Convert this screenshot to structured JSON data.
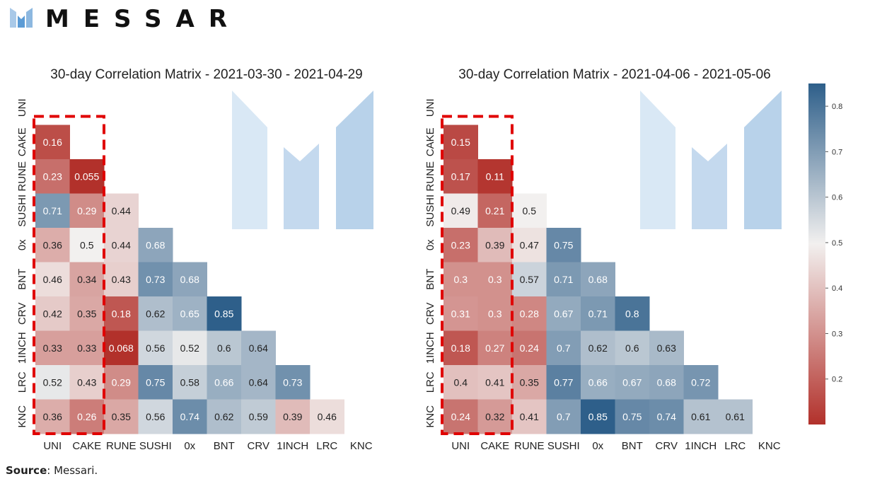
{
  "brand": {
    "name": "MESSARI",
    "logo_icon": "messari-m-logo-icon",
    "logo_color": "#5b9bd5",
    "text_color": "#111111"
  },
  "source": {
    "label": "Source",
    "text": ": Messari."
  },
  "colors": {
    "low": "#b2312b",
    "mid": "#f2f0ef",
    "high": "#2e5f8a",
    "highlight_box": "#e00000"
  },
  "chart_data": [
    {
      "type": "heatmap",
      "title": "30-day Correlation Matrix - 2021-03-30 - 2021-04-29",
      "labels": [
        "UNI",
        "CAKE",
        "RUNE",
        "SUSHI",
        "0x",
        "BNT",
        "CRV",
        "1INCH",
        "LRC",
        "KNC"
      ],
      "mask": "lower-triangle",
      "highlighted_columns": [
        "UNI",
        "CAKE"
      ],
      "values": [
        [],
        [
          0.16
        ],
        [
          0.23,
          0.055
        ],
        [
          0.71,
          0.29,
          0.44
        ],
        [
          0.36,
          0.5,
          0.44,
          0.68
        ],
        [
          0.46,
          0.34,
          0.43,
          0.73,
          0.68
        ],
        [
          0.42,
          0.35,
          0.18,
          0.62,
          0.65,
          0.85
        ],
        [
          0.33,
          0.33,
          0.068,
          0.56,
          0.52,
          0.6,
          0.64
        ],
        [
          0.52,
          0.43,
          0.29,
          0.75,
          0.58,
          0.66,
          0.64,
          0.73
        ],
        [
          0.36,
          0.26,
          0.35,
          0.56,
          0.74,
          0.62,
          0.59,
          0.39,
          0.46
        ]
      ]
    },
    {
      "type": "heatmap",
      "title": "30-day Correlation Matrix - 2021-04-06 - 2021-05-06",
      "labels": [
        "UNI",
        "CAKE",
        "RUNE",
        "SUSHI",
        "0x",
        "BNT",
        "CRV",
        "1INCH",
        "LRC",
        "KNC"
      ],
      "mask": "lower-triangle",
      "highlighted_columns": [
        "UNI",
        "CAKE"
      ],
      "values": [
        [],
        [
          0.15
        ],
        [
          0.17,
          0.11
        ],
        [
          0.49,
          0.21,
          0.5
        ],
        [
          0.23,
          0.39,
          0.47,
          0.75
        ],
        [
          0.3,
          0.3,
          0.57,
          0.71,
          0.68
        ],
        [
          0.31,
          0.3,
          0.28,
          0.67,
          0.71,
          0.8
        ],
        [
          0.18,
          0.27,
          0.24,
          0.7,
          0.62,
          0.6,
          0.63
        ],
        [
          0.4,
          0.41,
          0.35,
          0.77,
          0.66,
          0.67,
          0.68,
          0.72
        ],
        [
          0.24,
          0.32,
          0.41,
          0.7,
          0.85,
          0.75,
          0.74,
          0.61,
          0.61
        ]
      ]
    }
  ],
  "colorbar": {
    "range": [
      0.1,
      0.85
    ],
    "ticks": [
      0.2,
      0.3,
      0.4,
      0.5,
      0.6,
      0.7,
      0.8
    ]
  }
}
